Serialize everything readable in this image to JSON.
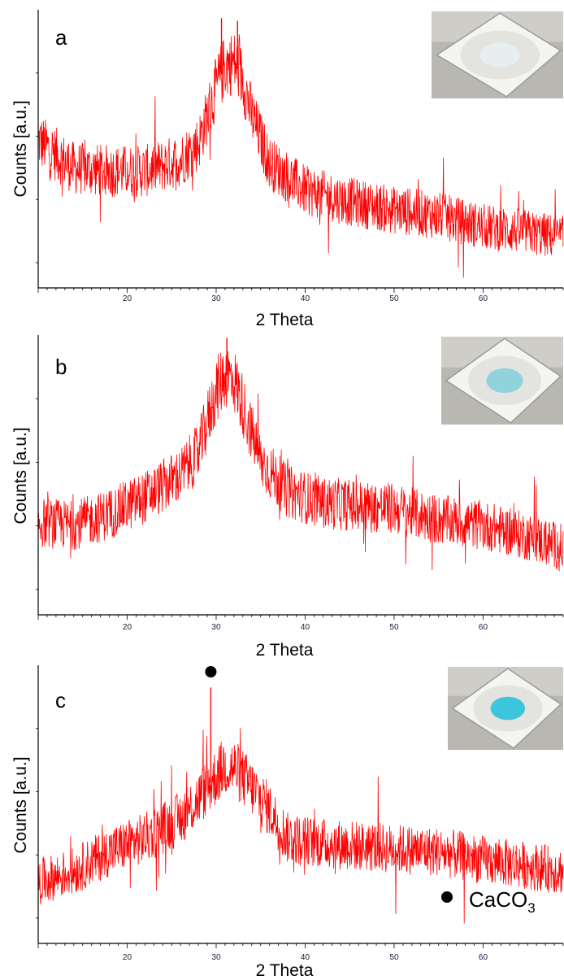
{
  "colors": {
    "trace": "#ff0000",
    "axis": "#000000",
    "tick_label": "#1a1a3a",
    "marker": "#000000"
  },
  "chart_data": [
    {
      "type": "line",
      "panel_label": "a",
      "xlabel": "2 Theta",
      "ylabel": "Counts [a.u.]",
      "xlim": [
        10,
        69
      ],
      "ylim": [
        0,
        100
      ],
      "x_ticks": [
        20,
        30,
        40,
        50,
        60
      ],
      "grid": false,
      "inset": {
        "description": "photo",
        "powder_color": "#e6eef0"
      },
      "series": [
        {
          "values": [
            [
              10,
              53
            ],
            [
              14,
              43
            ],
            [
              18,
              42
            ],
            [
              22,
              42
            ],
            [
              26,
              46
            ],
            [
              28,
              52
            ],
            [
              30,
              72
            ],
            [
              31,
              80
            ],
            [
              32,
              81
            ],
            [
              33,
              75
            ],
            [
              34,
              62
            ],
            [
              36,
              45
            ],
            [
              40,
              35
            ],
            [
              45,
              31
            ],
            [
              50,
              28
            ],
            [
              55,
              26
            ],
            [
              60,
              22
            ],
            [
              65,
              20
            ],
            [
              69,
              18
            ]
          ],
          "spikes": [
            [
              30.6,
              97
            ],
            [
              32.4,
              96
            ]
          ]
        }
      ]
    },
    {
      "type": "line",
      "panel_label": "b",
      "xlabel": "2 Theta",
      "ylabel": "Counts [a.u.]",
      "xlim": [
        10,
        69
      ],
      "ylim": [
        0,
        100
      ],
      "x_ticks": [
        20,
        30,
        40,
        50,
        60
      ],
      "grid": false,
      "inset": {
        "description": "photo",
        "powder_color": "#8fd3dc"
      },
      "series": [
        {
          "values": [
            [
              10,
              33
            ],
            [
              14,
              32
            ],
            [
              18,
              36
            ],
            [
              22,
              42
            ],
            [
              26,
              50
            ],
            [
              28,
              58
            ],
            [
              30,
              80
            ],
            [
              31,
              86
            ],
            [
              32,
              84
            ],
            [
              33,
              75
            ],
            [
              35,
              55
            ],
            [
              38,
              44
            ],
            [
              42,
              40
            ],
            [
              50,
              38
            ],
            [
              55,
              34
            ],
            [
              60,
              32
            ],
            [
              65,
              28
            ],
            [
              69,
              24
            ]
          ],
          "spikes": [
            [
              31.2,
              99
            ]
          ]
        }
      ]
    },
    {
      "type": "line",
      "panel_label": "c",
      "xlabel": "2 Theta",
      "ylabel": "Counts [a.u.]",
      "xlim": [
        10,
        69
      ],
      "ylim": [
        0,
        100
      ],
      "x_ticks": [
        20,
        30,
        40,
        50,
        60
      ],
      "grid": false,
      "inset": {
        "description": "photo",
        "powder_color": "#3cc6dc"
      },
      "legend": {
        "marker": "●",
        "label": "CaCO3",
        "label_main": "CaCO",
        "label_sub": "3"
      },
      "annotations": [
        {
          "x": 29.4,
          "marker": "●"
        }
      ],
      "series": [
        {
          "values": [
            [
              10,
              22
            ],
            [
              14,
              26
            ],
            [
              18,
              33
            ],
            [
              22,
              38
            ],
            [
              26,
              45
            ],
            [
              28,
              52
            ],
            [
              30,
              60
            ],
            [
              31,
              64
            ],
            [
              32,
              63
            ],
            [
              34,
              56
            ],
            [
              36,
              48
            ],
            [
              38,
              38
            ],
            [
              42,
              36
            ],
            [
              50,
              34
            ],
            [
              55,
              33
            ],
            [
              60,
              30
            ],
            [
              65,
              28
            ],
            [
              69,
              26
            ]
          ],
          "spikes": [
            [
              29.4,
              92
            ]
          ]
        }
      ]
    }
  ]
}
